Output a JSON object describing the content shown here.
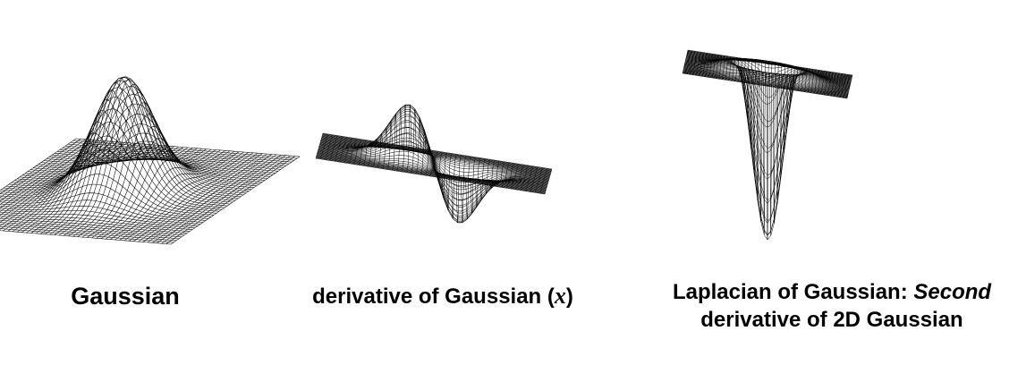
{
  "panels": [
    {
      "id": "gaussian",
      "surface": "gaussian",
      "caption": "Gaussian"
    },
    {
      "id": "derivative",
      "surface": "derivative-x",
      "caption_prefix": "derivative of Gaussian (",
      "caption_var": "x",
      "caption_suffix": ")"
    },
    {
      "id": "laplacian",
      "surface": "laplacian",
      "caption_line1_prefix": "Laplacian of Gaussian: ",
      "caption_line1_em": "Second",
      "caption_line2": "derivative of 2D Gaussian"
    }
  ],
  "colors": {
    "mesh": "#000000",
    "background": "#ffffff"
  }
}
